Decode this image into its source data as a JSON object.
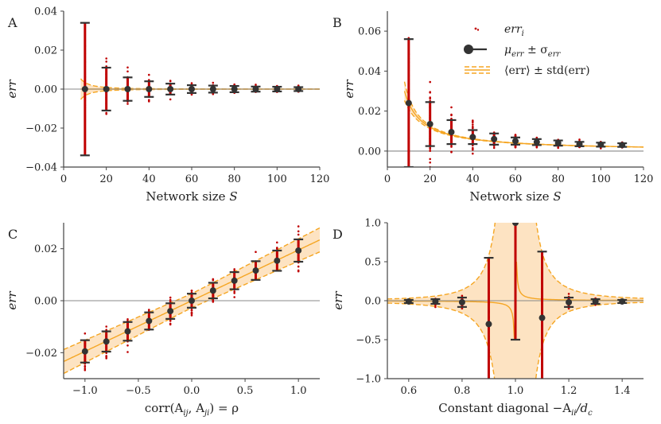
{
  "colors": {
    "band_fill": "#fde3c2",
    "band_edge": "#f5a623",
    "mean_line": "#f5a623",
    "points": "#c00000",
    "err_bar": "#c00000",
    "mean_marker": "#333333",
    "axis": "#444444",
    "zero_line": "#888888"
  },
  "legend": {
    "items": [
      {
        "label": "err_i",
        "base": "err",
        "sub": "i",
        "kind": "dots"
      },
      {
        "label": "μ_err ± σ_err",
        "base": "μ",
        "sub": "err",
        "mid": " ± σ",
        "sub2": "err",
        "kind": "marker"
      },
      {
        "label": "⟨err⟩ ± std(err)",
        "text": "⟨err⟩ ± std(err)",
        "kind": "band-lines"
      }
    ]
  },
  "chart_data": [
    {
      "panel": "A",
      "type": "scatter",
      "xlabel": "Network size S",
      "xlabel_main": "Network size ",
      "xlabel_italic": "S",
      "ylabel": "err",
      "xlim": [
        0,
        120
      ],
      "ylim": [
        -0.04,
        0.04
      ],
      "xticks": [
        0,
        20,
        40,
        60,
        80,
        100,
        120
      ],
      "xtick_labels": [
        "0",
        "20",
        "40",
        "60",
        "80",
        "100",
        "120"
      ],
      "yticks": [
        -0.04,
        -0.02,
        0.0,
        0.02,
        0.04
      ],
      "ytick_labels": [
        "−0.04",
        "−0.02",
        "0.00",
        "0.02",
        "0.04"
      ],
      "zero_line": true,
      "x": [
        10,
        20,
        30,
        40,
        50,
        60,
        70,
        80,
        90,
        100,
        110
      ],
      "mu": [
        0.0,
        0.0,
        0.0,
        0.0,
        0.0,
        0.0,
        0.0,
        0.0,
        0.0,
        0.0,
        0.0
      ],
      "sigma": [
        0.034,
        0.011,
        0.006,
        0.004,
        0.0028,
        0.002,
        0.0018,
        0.0016,
        0.0013,
        0.0012,
        0.001
      ],
      "spread": [
        0.05,
        0.022,
        0.015,
        0.009,
        0.007,
        0.005,
        0.004,
        0.0035,
        0.003,
        0.003,
        0.0025
      ],
      "band": {
        "x": [
          8,
          120
        ],
        "center": "0",
        "k": 0.34,
        "power": 2
      }
    },
    {
      "panel": "B",
      "type": "scatter",
      "xlabel": "Network size S",
      "xlabel_main": "Network size ",
      "xlabel_italic": "S",
      "ylabel": "err",
      "xlim": [
        0,
        120
      ],
      "ylim": [
        -0.008,
        0.07
      ],
      "xticks": [
        0,
        20,
        40,
        60,
        80,
        100,
        120
      ],
      "xtick_labels": [
        "0",
        "20",
        "40",
        "60",
        "80",
        "100",
        "120"
      ],
      "yticks": [
        0.0,
        0.02,
        0.04,
        0.06
      ],
      "ytick_labels": [
        "0.00",
        "0.02",
        "0.04",
        "0.06"
      ],
      "zero_line": true,
      "x": [
        10,
        20,
        30,
        40,
        50,
        60,
        70,
        80,
        90,
        100,
        110
      ],
      "mu": [
        0.024,
        0.0135,
        0.0095,
        0.007,
        0.006,
        0.005,
        0.0045,
        0.004,
        0.0035,
        0.0032,
        0.003
      ],
      "sigma": [
        0.032,
        0.011,
        0.006,
        0.0035,
        0.0028,
        0.0018,
        0.0015,
        0.0013,
        0.0011,
        0.001,
        0.0009
      ],
      "spread": [
        0.06,
        0.04,
        0.02,
        0.011,
        0.007,
        0.005,
        0.004,
        0.0035,
        0.003,
        0.003,
        0.0025
      ],
      "band": {
        "x": [
          8,
          120
        ],
        "center": "invx",
        "k": 0.3,
        "power": 2
      }
    },
    {
      "panel": "C",
      "type": "scatter",
      "xlabel": "corr(A_ij, A_ji) = ρ",
      "xlabel_text": "corr(A",
      "xlabel_sub1": "ij",
      "xlabel_mid": ", A",
      "xlabel_sub2": "ji",
      "xlabel_end": ") = ρ",
      "ylabel": "err",
      "xlim": [
        -1.2,
        1.2
      ],
      "ylim": [
        -0.03,
        0.03
      ],
      "xticks": [
        -1.0,
        -0.5,
        0.0,
        0.5,
        1.0
      ],
      "xtick_labels": [
        "−1.0",
        "−0.5",
        "0.0",
        "0.5",
        "1.0"
      ],
      "yticks": [
        -0.02,
        0.0,
        0.02
      ],
      "ytick_labels": [
        "−0.02",
        "0.00",
        "0.02"
      ],
      "zero_line": true,
      "x": [
        -1.0,
        -0.8,
        -0.6,
        -0.4,
        -0.2,
        0.0,
        0.2,
        0.4,
        0.6,
        0.8,
        1.0
      ],
      "mu": [
        -0.0195,
        -0.0157,
        -0.0118,
        -0.0078,
        -0.004,
        0.0,
        0.0039,
        0.0077,
        0.0116,
        0.0154,
        0.0193
      ],
      "sigma": [
        0.0043,
        0.0039,
        0.0036,
        0.0033,
        0.003,
        0.0027,
        0.003,
        0.0033,
        0.0036,
        0.0039,
        0.0043
      ],
      "spread": [
        0.01,
        0.009,
        0.0085,
        0.008,
        0.0075,
        0.007,
        0.0075,
        0.008,
        0.0085,
        0.009,
        0.01
      ],
      "band": {
        "x": [
          -1.2,
          1.2
        ],
        "center": "linear",
        "slope": 0.0195,
        "k": 0.0027,
        "power": 1
      }
    },
    {
      "panel": "D",
      "type": "scatter",
      "xlabel": "Constant diagonal −A_ii/d_c",
      "xlabel_text": "Constant diagonal −A",
      "xlabel_sub1": "ii",
      "xlabel_mid": "/d",
      "xlabel_sub2": "c",
      "xlabel_end": "",
      "ylabel": "err",
      "xlim": [
        0.52,
        1.48
      ],
      "ylim": [
        -1.0,
        1.0
      ],
      "xticks": [
        0.6,
        0.8,
        1.0,
        1.2,
        1.4
      ],
      "xtick_labels": [
        "0.6",
        "0.8",
        "1.0",
        "1.2",
        "1.4"
      ],
      "yticks": [
        -1.0,
        -0.5,
        0.0,
        0.5,
        1.0
      ],
      "ytick_labels": [
        "−1.0",
        "−0.5",
        "0.0",
        "0.5",
        "1.0"
      ],
      "zero_line": true,
      "x": [
        0.6,
        0.7,
        0.8,
        0.9,
        1.0,
        1.1,
        1.2,
        1.3,
        1.4
      ],
      "mu": [
        -0.01,
        -0.01,
        -0.02,
        -0.3,
        1.0,
        -0.22,
        -0.02,
        -0.01,
        -0.01
      ],
      "sigma": [
        0.02,
        0.03,
        0.06,
        0.85,
        1.5,
        0.85,
        0.06,
        0.03,
        0.02
      ],
      "spread": [
        0.04,
        0.08,
        0.12,
        1.0,
        1.0,
        1.0,
        0.12,
        0.08,
        0.04
      ],
      "band": {
        "x": [
          0.52,
          1.48
        ],
        "center": "pole",
        "k": 0.006,
        "power": 2
      }
    }
  ]
}
